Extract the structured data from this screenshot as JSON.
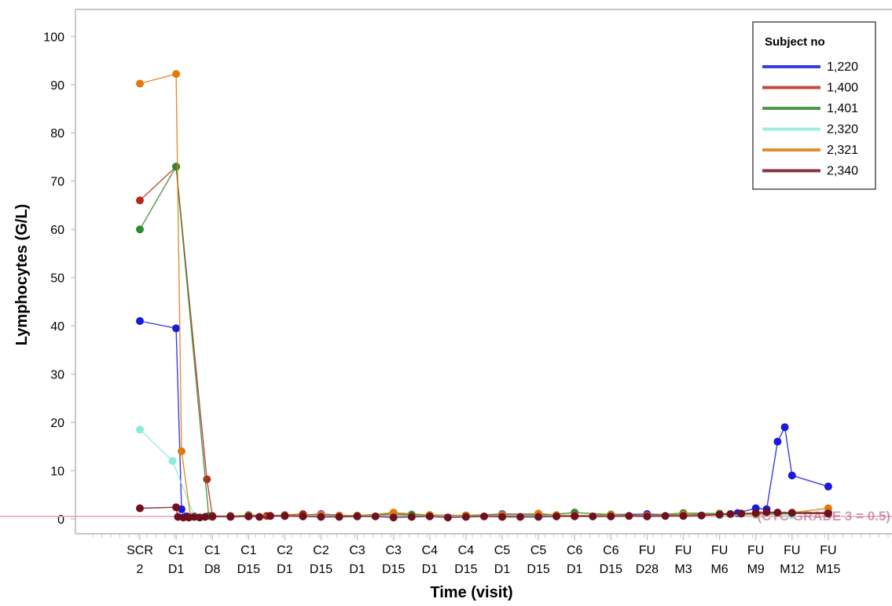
{
  "chart_data": {
    "type": "line",
    "title": "",
    "xlabel": "Time (visit)",
    "ylabel": "Lymphocytes (G/L)",
    "ylim": [
      0,
      100
    ],
    "yticks": [
      0,
      10,
      20,
      30,
      40,
      50,
      60,
      70,
      80,
      90,
      100
    ],
    "grid": false,
    "legend_position": "top-right",
    "legend_title": "Subject no",
    "categories": [
      "SCR 2",
      "C1 D1",
      "C1 D8",
      "C1 D15",
      "C2 D1",
      "C2 D15",
      "C3 D1",
      "C3 D15",
      "C4 D1",
      "C4 D15",
      "C5 D1",
      "C5 D15",
      "C6 D1",
      "C6 D15",
      "FU D28",
      "FU M3",
      "FU M6",
      "FU M9",
      "FU M12",
      "FU M15"
    ],
    "category_lines": [
      [
        "SCR",
        "2"
      ],
      [
        "C1",
        "D1"
      ],
      [
        "C1",
        "D8"
      ],
      [
        "C1",
        "D15"
      ],
      [
        "C2",
        "D1"
      ],
      [
        "C2",
        "D15"
      ],
      [
        "C3",
        "D1"
      ],
      [
        "C3",
        "D15"
      ],
      [
        "C4",
        "D1"
      ],
      [
        "C4",
        "D15"
      ],
      [
        "C5",
        "D1"
      ],
      [
        "C5",
        "D15"
      ],
      [
        "C6",
        "D1"
      ],
      [
        "C6",
        "D15"
      ],
      [
        "FU",
        "D28"
      ],
      [
        "FU",
        "M3"
      ],
      [
        "FU",
        "M6"
      ],
      [
        "FU",
        "M9"
      ],
      [
        "FU",
        "M12"
      ],
      [
        "FU",
        "M15"
      ]
    ],
    "reference_line": {
      "y": 0.5,
      "label": "(CTC GRADE 3 = 0.5)",
      "color": "#e8a0b8"
    },
    "series": [
      {
        "name": "1,220",
        "color": "#1a1adc",
        "points": [
          [
            0,
            41
          ],
          [
            1,
            39.5
          ],
          [
            1.15,
            2
          ],
          [
            1.3,
            0.5
          ],
          [
            1.5,
            0.6
          ],
          [
            2,
            0.4
          ],
          [
            3,
            0.7
          ],
          [
            4,
            0.6
          ],
          [
            5,
            1
          ],
          [
            6,
            0.6
          ],
          [
            7,
            0.8
          ],
          [
            8,
            0.6
          ],
          [
            9,
            0.7
          ],
          [
            10,
            1
          ],
          [
            11,
            1
          ],
          [
            12,
            0.6
          ],
          [
            13,
            0.9
          ],
          [
            14,
            1
          ],
          [
            15,
            0.8
          ],
          [
            16,
            1
          ],
          [
            16.5,
            1.2
          ],
          [
            17,
            2.2
          ],
          [
            17.3,
            2
          ],
          [
            17.6,
            16
          ],
          [
            17.8,
            19
          ],
          [
            18,
            9
          ],
          [
            19,
            6.7
          ]
        ]
      },
      {
        "name": "1,400",
        "color": "#b52a1a",
        "points": [
          [
            0,
            66
          ],
          [
            1,
            73
          ],
          [
            1.85,
            8.2
          ],
          [
            2,
            0.6
          ],
          [
            2.5,
            0.6
          ],
          [
            3,
            0.7
          ],
          [
            3.5,
            0.6
          ],
          [
            4,
            0.8
          ],
          [
            4.5,
            1
          ],
          [
            5,
            0.6
          ],
          [
            6,
            0.6
          ],
          [
            7,
            0.8
          ],
          [
            8,
            0.7
          ],
          [
            9,
            0.6
          ],
          [
            10,
            0.6
          ],
          [
            11,
            0.7
          ],
          [
            12,
            0.5
          ],
          [
            13,
            0.6
          ],
          [
            14,
            0.6
          ],
          [
            15,
            0.7
          ],
          [
            16,
            0.9
          ],
          [
            17,
            1.1
          ],
          [
            18,
            1.3
          ],
          [
            19,
            1.3
          ]
        ]
      },
      {
        "name": "1,401",
        "color": "#2e8a2e",
        "points": [
          [
            0,
            60
          ],
          [
            1,
            73
          ],
          [
            1.9,
            0.6
          ],
          [
            2.5,
            0.5
          ],
          [
            3,
            0.8
          ],
          [
            4,
            0.7
          ],
          [
            5,
            0.7
          ],
          [
            6,
            0.7
          ],
          [
            7,
            1.1
          ],
          [
            7.5,
            0.9
          ],
          [
            8,
            0.8
          ],
          [
            9,
            0.7
          ],
          [
            10,
            0.9
          ],
          [
            11,
            0.7
          ],
          [
            12,
            1.3
          ],
          [
            13,
            0.9
          ],
          [
            14,
            0.7
          ],
          [
            15,
            1.2
          ],
          [
            16,
            1.1
          ],
          [
            17,
            0.9
          ],
          [
            18,
            1.1
          ],
          [
            19,
            1.1
          ]
        ]
      },
      {
        "name": "2,320",
        "color": "#8cecd8",
        "points": [
          [
            0,
            18.5
          ],
          [
            0.9,
            12
          ],
          [
            1.5,
            0.6
          ],
          [
            2,
            0.5
          ],
          [
            3,
            0.6
          ],
          [
            4,
            0.7
          ],
          [
            5,
            0.6
          ],
          [
            6,
            0.6
          ],
          [
            7,
            0.7
          ],
          [
            8,
            0.6
          ],
          [
            9,
            0.6
          ],
          [
            10,
            0.7
          ],
          [
            11,
            0.6
          ],
          [
            12,
            0.7
          ],
          [
            13,
            0.6
          ],
          [
            14,
            0.6
          ],
          [
            15,
            0.7
          ],
          [
            16,
            0.7
          ],
          [
            17,
            0.8
          ],
          [
            18,
            0.8
          ]
        ]
      },
      {
        "name": "2,321",
        "color": "#e07a0a",
        "points": [
          [
            0,
            90.2
          ],
          [
            1,
            92.2
          ],
          [
            1.15,
            14
          ],
          [
            1.4,
            0.4
          ],
          [
            2,
            0.4
          ],
          [
            3,
            0.6
          ],
          [
            4,
            0.7
          ],
          [
            5,
            0.9
          ],
          [
            5.5,
            0.7
          ],
          [
            6,
            0.6
          ],
          [
            7,
            1.3
          ],
          [
            8,
            0.8
          ],
          [
            9,
            0.7
          ],
          [
            10,
            0.8
          ],
          [
            11,
            1.1
          ],
          [
            11.5,
            0.8
          ],
          [
            12,
            0.7
          ],
          [
            13,
            0.8
          ],
          [
            14,
            0.7
          ],
          [
            15,
            0.9
          ],
          [
            16,
            1
          ],
          [
            17,
            1
          ],
          [
            18,
            1.3
          ],
          [
            19,
            2.2
          ]
        ]
      },
      {
        "name": "2,340",
        "color": "#6e1020",
        "points": [
          [
            0,
            2.2
          ],
          [
            1,
            2.4
          ],
          [
            1.05,
            0.4
          ],
          [
            1.2,
            0.3
          ],
          [
            1.35,
            0.3
          ],
          [
            1.5,
            0.4
          ],
          [
            1.65,
            0.3
          ],
          [
            1.8,
            0.4
          ],
          [
            2,
            0.5
          ],
          [
            2.5,
            0.4
          ],
          [
            3,
            0.5
          ],
          [
            3.3,
            0.4
          ],
          [
            3.6,
            0.6
          ],
          [
            4,
            0.6
          ],
          [
            4.5,
            0.5
          ],
          [
            5,
            0.4
          ],
          [
            5.5,
            0.4
          ],
          [
            6,
            0.5
          ],
          [
            6.5,
            0.5
          ],
          [
            7,
            0.3
          ],
          [
            7.5,
            0.4
          ],
          [
            8,
            0.5
          ],
          [
            8.5,
            0.3
          ],
          [
            9,
            0.4
          ],
          [
            9.5,
            0.5
          ],
          [
            10,
            0.4
          ],
          [
            10.5,
            0.4
          ],
          [
            11,
            0.4
          ],
          [
            11.5,
            0.5
          ],
          [
            12,
            0.6
          ],
          [
            12.5,
            0.5
          ],
          [
            13,
            0.5
          ],
          [
            13.5,
            0.6
          ],
          [
            14,
            0.5
          ],
          [
            14.5,
            0.6
          ],
          [
            15,
            0.6
          ],
          [
            15.5,
            0.7
          ],
          [
            16,
            0.9
          ],
          [
            16.3,
            1
          ],
          [
            16.6,
            1.1
          ],
          [
            17,
            1.2
          ],
          [
            17.3,
            1.4
          ],
          [
            17.6,
            1.3
          ],
          [
            18,
            1.2
          ],
          [
            19,
            1.1
          ]
        ]
      }
    ]
  }
}
